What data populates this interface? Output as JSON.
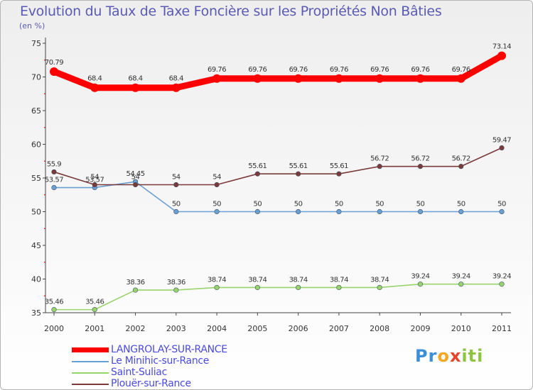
{
  "chart_data": {
    "type": "line",
    "title": "Evolution du Taux de Taxe Foncière sur les Propriétés Non Bâties",
    "ylabel": "(en %)",
    "xlabel": "",
    "categories": [
      "2000",
      "2001",
      "2002",
      "2003",
      "2004",
      "2005",
      "2006",
      "2007",
      "2008",
      "2009",
      "2010",
      "2011"
    ],
    "ylim": [
      35,
      75
    ],
    "yticks": [
      35,
      40,
      45,
      50,
      55,
      60,
      65,
      70,
      75
    ],
    "grid": false,
    "legend_position": "bottom-left",
    "series": [
      {
        "name": "LANGROLAY-SUR-RANCE",
        "color": "#ff0000",
        "values": [
          70.79,
          68.4,
          68.4,
          68.4,
          69.76,
          69.76,
          69.76,
          69.76,
          69.76,
          69.76,
          69.76,
          73.14
        ],
        "labels": [
          "70.79",
          "68.4",
          "68.4",
          "68.4",
          "69.76",
          "69.76",
          "69.76",
          "69.76",
          "69.76",
          "69.76",
          "69.76",
          "73.14"
        ]
      },
      {
        "name": "Le Minihic-sur-Rance",
        "color": "#6a9fd4",
        "values": [
          53.57,
          53.57,
          54.45,
          50,
          50,
          50,
          50,
          50,
          50,
          50,
          50,
          50
        ],
        "labels": [
          "53.57",
          "53.57",
          "54.45",
          "50",
          "50",
          "50",
          "50",
          "50",
          "50",
          "50",
          "50",
          "50"
        ]
      },
      {
        "name": "Saint-Suliac",
        "color": "#99d36b",
        "values": [
          35.46,
          35.46,
          38.36,
          38.36,
          38.74,
          38.74,
          38.74,
          38.74,
          38.74,
          39.24,
          39.24,
          39.24
        ],
        "labels": [
          "35.46",
          "35.46",
          "38.36",
          "38.36",
          "38.74",
          "38.74",
          "38.74",
          "38.74",
          "38.74",
          "39.24",
          "39.24",
          "39.24"
        ]
      },
      {
        "name": "Plouër-sur-Rance",
        "color": "#7a3a3a",
        "values": [
          55.9,
          54,
          54,
          54,
          54,
          55.61,
          55.61,
          55.61,
          56.72,
          56.72,
          56.72,
          59.47
        ],
        "labels": [
          "55.9",
          "54",
          "54",
          "54",
          "54",
          "55.61",
          "55.61",
          "55.61",
          "56.72",
          "56.72",
          "56.72",
          "59.47"
        ]
      }
    ]
  },
  "logo": {
    "parts": [
      "Pr",
      "o",
      "x",
      "iti"
    ],
    "colors": [
      "#3a8fd6",
      "#f5a623",
      "#e8442a",
      "#8cc63f"
    ]
  }
}
